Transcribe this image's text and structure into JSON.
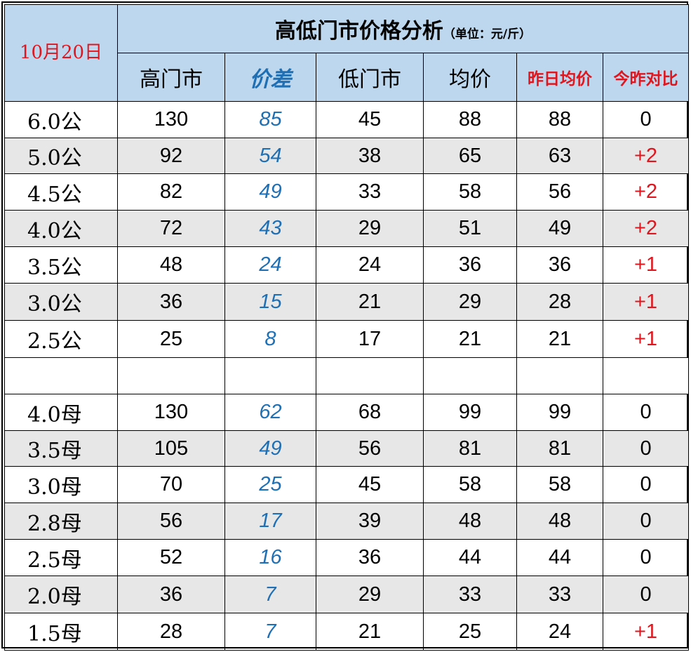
{
  "table": {
    "date": "10月20日",
    "title": "高低门市价格分析",
    "unit": "（单位：元/斤）",
    "headers": [
      "高门市",
      "价差",
      "低门市",
      "均价",
      "昨日均价",
      "今昨对比"
    ],
    "rows_a": [
      {
        "label": "6.0公",
        "high": "130",
        "diff": "85",
        "low": "45",
        "avg": "88",
        "yest": "88",
        "cmp": "0"
      },
      {
        "label": "5.0公",
        "high": "92",
        "diff": "54",
        "low": "38",
        "avg": "65",
        "yest": "63",
        "cmp": "+2"
      },
      {
        "label": "4.5公",
        "high": "82",
        "diff": "49",
        "low": "33",
        "avg": "58",
        "yest": "56",
        "cmp": "+2"
      },
      {
        "label": "4.0公",
        "high": "72",
        "diff": "43",
        "low": "29",
        "avg": "51",
        "yest": "49",
        "cmp": "+2"
      },
      {
        "label": "3.5公",
        "high": "48",
        "diff": "24",
        "low": "24",
        "avg": "36",
        "yest": "36",
        "cmp": "+1"
      },
      {
        "label": "3.0公",
        "high": "36",
        "diff": "15",
        "low": "21",
        "avg": "29",
        "yest": "28",
        "cmp": "+1"
      },
      {
        "label": "2.5公",
        "high": "25",
        "diff": "8",
        "low": "17",
        "avg": "21",
        "yest": "21",
        "cmp": "+1"
      }
    ],
    "rows_b": [
      {
        "label": "4.0母",
        "high": "130",
        "diff": "62",
        "low": "68",
        "avg": "99",
        "yest": "99",
        "cmp": "0"
      },
      {
        "label": "3.5母",
        "high": "105",
        "diff": "49",
        "low": "56",
        "avg": "81",
        "yest": "81",
        "cmp": "0"
      },
      {
        "label": "3.0母",
        "high": "70",
        "diff": "25",
        "low": "45",
        "avg": "58",
        "yest": "58",
        "cmp": "0"
      },
      {
        "label": "2.8母",
        "high": "56",
        "diff": "17",
        "low": "39",
        "avg": "48",
        "yest": "48",
        "cmp": "0"
      },
      {
        "label": "2.5母",
        "high": "52",
        "diff": "16",
        "low": "36",
        "avg": "44",
        "yest": "44",
        "cmp": "0"
      },
      {
        "label": "2.0母",
        "high": "36",
        "diff": "7",
        "low": "29",
        "avg": "33",
        "yest": "33",
        "cmp": "0"
      },
      {
        "label": "1.5母",
        "high": "28",
        "diff": "7",
        "low": "21",
        "avg": "25",
        "yest": "24",
        "cmp": "+1"
      }
    ]
  },
  "colors": {
    "header_bg": "#bdd7ee",
    "alt_row_bg": "#e7e7e7",
    "diff_blue": "#1f6fb5",
    "up_red": "#e0161e"
  }
}
